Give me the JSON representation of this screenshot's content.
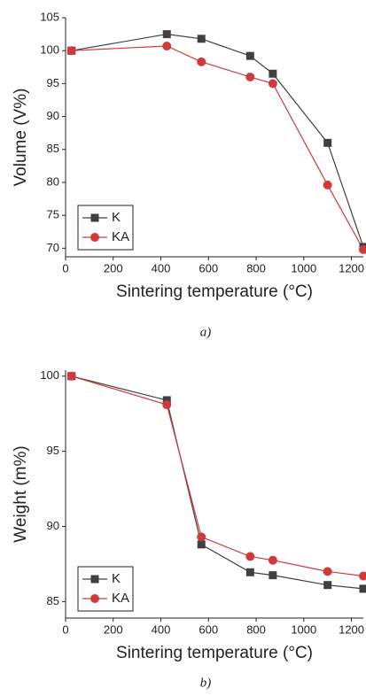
{
  "chart_data": [
    {
      "type": "line",
      "caption": "a)",
      "x_label": "Sintering temperature (°C)",
      "y_label": "Volume (V%)",
      "x": [
        25,
        425,
        570,
        775,
        870,
        1100,
        1250
      ],
      "series": [
        {
          "name": "K",
          "color": "#404040",
          "marker": "square",
          "values": [
            100,
            102.5,
            101.8,
            99.2,
            96.5,
            86,
            70.2
          ]
        },
        {
          "name": "KA",
          "color": "#d03a3a",
          "marker": "circle",
          "values": [
            100,
            100.7,
            98.3,
            96,
            95,
            79.6,
            69.8
          ]
        }
      ],
      "xlim": [
        0,
        1250
      ],
      "xticks": [
        0,
        200,
        400,
        600,
        800,
        1000,
        1200
      ],
      "ylim": [
        68.7,
        105
      ],
      "yticks": [
        70,
        75,
        80,
        85,
        90,
        95,
        100,
        105
      ],
      "legend": "lower-left"
    },
    {
      "type": "line",
      "caption": "b)",
      "x_label": "Sintering temperature (°C)",
      "y_label": "Weight (m%)",
      "x": [
        25,
        425,
        570,
        775,
        870,
        1100,
        1250
      ],
      "series": [
        {
          "name": "K",
          "color": "#404040",
          "marker": "square",
          "values": [
            100,
            98.4,
            88.8,
            86.95,
            86.75,
            86.1,
            85.85
          ]
        },
        {
          "name": "KA",
          "color": "#d03a3a",
          "marker": "circle",
          "values": [
            100,
            98.1,
            89.3,
            88,
            87.75,
            87,
            86.7
          ]
        }
      ],
      "xlim": [
        0,
        1250
      ],
      "xticks": [
        0,
        200,
        400,
        600,
        800,
        1000,
        1200
      ],
      "ylim": [
        83.9,
        100.4
      ],
      "yticks": [
        85,
        90,
        95,
        100
      ],
      "legend": "lower-left"
    }
  ]
}
